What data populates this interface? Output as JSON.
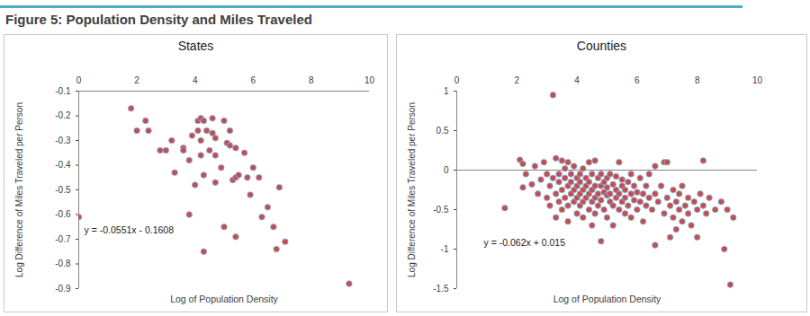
{
  "title": "Figure 5: Population Density and Miles Traveled",
  "chart_data": [
    {
      "type": "scatter",
      "title": "States",
      "x_label": "Log of Population Density",
      "y_label": "Log Difference of Miles Traveled per Person",
      "annotations": [
        "y = -0.0551x - 0.1608"
      ],
      "color": "#c0504d",
      "marker": "circle",
      "grid": false,
      "xlim": [
        0,
        10
      ],
      "xticks": [
        0,
        2,
        4,
        6,
        8,
        10
      ],
      "ylim": [
        -0.9,
        -0.1
      ],
      "yticks": [
        -0.1,
        -0.2,
        -0.3,
        -0.4,
        -0.5,
        -0.6,
        -0.7,
        -0.8,
        -0.9
      ],
      "x": [
        0,
        1.8,
        2.0,
        2.3,
        2.4,
        2.8,
        3.0,
        3.2,
        3.3,
        3.6,
        3.6,
        3.8,
        3.8,
        3.9,
        4.0,
        4.1,
        4.1,
        4.2,
        4.2,
        4.2,
        4.3,
        4.3,
        4.3,
        4.4,
        4.5,
        4.6,
        4.6,
        4.7,
        4.7,
        4.7,
        4.9,
        5.0,
        5.0,
        5.1,
        5.2,
        5.2,
        5.3,
        5.4,
        5.4,
        5.4,
        5.5,
        5.7,
        5.8,
        5.9,
        6.0,
        6.2,
        6.3,
        6.5,
        6.7,
        6.8,
        6.9,
        7.1,
        9.3
      ],
      "y": [
        -0.61,
        -0.17,
        -0.26,
        -0.22,
        -0.26,
        -0.34,
        -0.34,
        -0.3,
        -0.43,
        -0.33,
        -0.34,
        -0.38,
        -0.6,
        -0.28,
        -0.48,
        -0.22,
        -0.26,
        -0.3,
        -0.21,
        -0.36,
        -0.22,
        -0.44,
        -0.75,
        -0.26,
        -0.34,
        -0.21,
        -0.27,
        -0.36,
        -0.29,
        -0.47,
        -0.41,
        -0.22,
        -0.65,
        -0.31,
        -0.32,
        -0.26,
        -0.46,
        -0.33,
        -0.69,
        -0.45,
        -0.44,
        -0.35,
        -0.45,
        -0.52,
        -0.41,
        -0.45,
        -0.61,
        -0.57,
        -0.65,
        -0.74,
        -0.49,
        -0.71,
        -0.88
      ]
    },
    {
      "type": "scatter",
      "title": "Counties",
      "x_label": "Log of Population Density",
      "y_label": "Log Difference of Miles Traveled per Person",
      "annotations": [
        "y = -0.062x + 0.015"
      ],
      "color": "#c0504d",
      "marker": "circle",
      "grid": false,
      "xlim": [
        0,
        10
      ],
      "xticks": [
        0,
        2,
        4,
        6,
        8,
        10
      ],
      "ylim": [
        -1.5,
        1
      ],
      "yticks": [
        1,
        0.5,
        0,
        -0.5,
        -1,
        -1.5
      ],
      "x": [
        1.6,
        2.1,
        2.2,
        2.3,
        2.2,
        2.5,
        2.6,
        2.7,
        2.8,
        2.9,
        3.0,
        3.0,
        3.1,
        3.1,
        3.2,
        3.2,
        3.3,
        3.3,
        3.3,
        3.4,
        3.4,
        3.4,
        3.5,
        3.5,
        3.5,
        3.6,
        3.6,
        3.6,
        3.7,
        3.7,
        3.7,
        3.7,
        3.8,
        3.8,
        3.8,
        3.9,
        3.9,
        3.9,
        4.0,
        4.0,
        4.0,
        4.0,
        4.1,
        4.1,
        4.1,
        4.1,
        4.2,
        4.2,
        4.2,
        4.2,
        4.3,
        4.3,
        4.3,
        4.4,
        4.4,
        4.4,
        4.4,
        4.5,
        4.5,
        4.5,
        4.5,
        4.6,
        4.6,
        4.6,
        4.6,
        4.7,
        4.7,
        4.7,
        4.8,
        4.8,
        4.8,
        4.8,
        4.9,
        4.9,
        4.9,
        5.0,
        5.0,
        5.0,
        5.0,
        5.1,
        5.1,
        5.1,
        5.2,
        5.2,
        5.2,
        5.3,
        5.3,
        5.3,
        5.4,
        5.4,
        5.4,
        5.5,
        5.5,
        5.5,
        5.6,
        5.6,
        5.6,
        5.7,
        5.7,
        5.8,
        5.8,
        5.8,
        5.9,
        5.9,
        6.0,
        6.0,
        6.1,
        6.1,
        6.2,
        6.2,
        6.3,
        6.3,
        6.4,
        6.4,
        6.5,
        6.6,
        6.6,
        6.6,
        6.7,
        6.8,
        6.9,
        6.9,
        7.0,
        7.0,
        7.1,
        7.1,
        7.2,
        7.2,
        7.3,
        7.3,
        7.4,
        7.4,
        7.5,
        7.5,
        7.6,
        7.7,
        7.7,
        7.8,
        7.9,
        8.0,
        8.0,
        8.1,
        8.2,
        8.2,
        8.3,
        8.4,
        8.6,
        8.8,
        8.9,
        9.0,
        9.1,
        9.2
      ],
      "y": [
        -0.48,
        0.13,
        0.08,
        -0.05,
        -0.22,
        -0.18,
        0.05,
        -0.3,
        -0.12,
        0.1,
        -0.35,
        -0.05,
        -0.2,
        -0.45,
        0.95,
        -0.1,
        0.15,
        -0.3,
        -0.6,
        -0.15,
        -0.05,
        -0.4,
        0.12,
        -0.25,
        -0.5,
        -0.1,
        -0.35,
        0.02,
        0.1,
        -0.2,
        -0.45,
        -0.65,
        -0.05,
        -0.3,
        -0.15,
        -0.4,
        0.05,
        -0.25,
        -0.1,
        -0.35,
        -0.55,
        -0.2,
        -0.05,
        -0.3,
        -0.45,
        -0.15,
        0.02,
        -0.25,
        -0.4,
        -0.6,
        -0.1,
        -0.35,
        -0.2,
        0.1,
        -0.3,
        -0.5,
        -0.15,
        -0.05,
        -0.25,
        -0.4,
        -0.7,
        0.12,
        -0.2,
        -0.35,
        -0.55,
        -0.1,
        -0.3,
        -0.45,
        -0.9,
        -0.2,
        -0.05,
        -0.38,
        -0.28,
        -0.5,
        -0.15,
        -0.32,
        -0.6,
        -0.1,
        -0.22,
        -0.4,
        -0.05,
        -0.3,
        -0.18,
        -0.45,
        -0.7,
        -0.25,
        -0.35,
        -0.08,
        0.1,
        -0.3,
        -0.5,
        -0.2,
        -0.4,
        -0.12,
        -0.35,
        -0.55,
        -0.25,
        -0.15,
        -0.45,
        -0.3,
        -0.6,
        -0.05,
        -0.38,
        -0.2,
        -0.28,
        -0.5,
        -0.1,
        -0.4,
        -0.3,
        -0.65,
        -0.2,
        -0.45,
        -0.35,
        -0.05,
        -0.5,
        0.05,
        -0.95,
        -0.3,
        -0.4,
        -0.2,
        0.1,
        -0.55,
        0.1,
        -0.35,
        -0.85,
        -0.45,
        -0.25,
        -0.6,
        -0.4,
        -0.75,
        -0.3,
        -0.5,
        -0.65,
        -0.2,
        -0.45,
        -0.35,
        -0.55,
        -0.7,
        -0.4,
        -0.85,
        -0.5,
        -0.3,
        0.12,
        -0.45,
        -0.55,
        -0.35,
        -0.5,
        -0.4,
        -1.0,
        -0.5,
        -1.45,
        -0.6
      ]
    }
  ]
}
